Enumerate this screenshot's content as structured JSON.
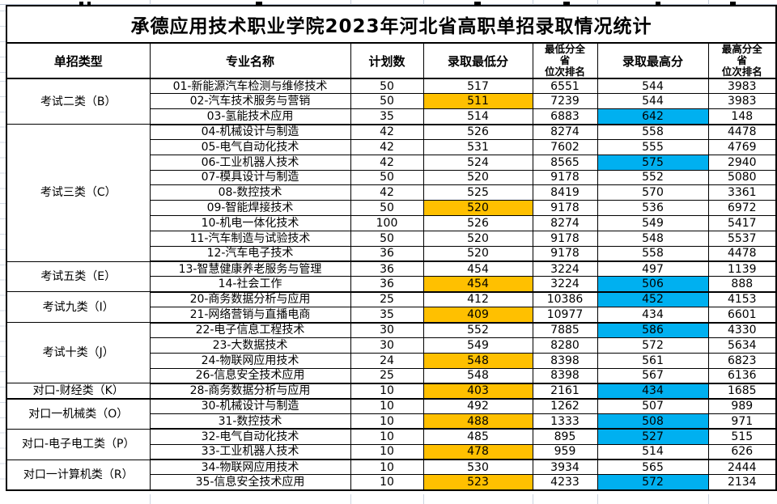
{
  "title": "承德应用技术职业学院2023年河北省高职单招录取情况统计",
  "colors": {
    "min_highlight": "#FFC000",
    "max_highlight": "#00B0F0"
  },
  "table": {
    "columns": [
      "单招类型",
      "专业名称",
      "计划数",
      "录取最低分",
      "最低分全\n省\n位次排名",
      "录取最高分",
      "最高分全\n省\n位次排名"
    ],
    "groups": [
      {
        "type": "考试二类（B）",
        "rows": [
          {
            "major": "01-新能源汽车检测与维修技术",
            "plan": "50",
            "min": "517",
            "min_rank": "6551",
            "max": "544",
            "max_rank": "3983",
            "min_hl": false,
            "max_hl": false
          },
          {
            "major": "02-汽车技术服务与营销",
            "plan": "50",
            "min": "511",
            "min_rank": "7239",
            "max": "544",
            "max_rank": "3983",
            "min_hl": true,
            "max_hl": false
          },
          {
            "major": "03-氢能技术应用",
            "plan": "35",
            "min": "514",
            "min_rank": "6883",
            "max": "642",
            "max_rank": "148",
            "min_hl": false,
            "max_hl": true
          }
        ]
      },
      {
        "type": "考试三类（C）",
        "rows": [
          {
            "major": "04-机械设计与制造",
            "plan": "42",
            "min": "526",
            "min_rank": "8274",
            "max": "558",
            "max_rank": "4478",
            "min_hl": false,
            "max_hl": false
          },
          {
            "major": "05-电气自动化技术",
            "plan": "42",
            "min": "531",
            "min_rank": "7602",
            "max": "555",
            "max_rank": "4769",
            "min_hl": false,
            "max_hl": false
          },
          {
            "major": "06-工业机器人技术",
            "plan": "42",
            "min": "524",
            "min_rank": "8565",
            "max": "575",
            "max_rank": "2940",
            "min_hl": false,
            "max_hl": true
          },
          {
            "major": "07-模具设计与制造",
            "plan": "50",
            "min": "520",
            "min_rank": "9178",
            "max": "552",
            "max_rank": "5080",
            "min_hl": false,
            "max_hl": false
          },
          {
            "major": "08-数控技术",
            "plan": "42",
            "min": "525",
            "min_rank": "8419",
            "max": "570",
            "max_rank": "3361",
            "min_hl": false,
            "max_hl": false
          },
          {
            "major": "09-智能焊接技术",
            "plan": "50",
            "min": "520",
            "min_rank": "9178",
            "max": "536",
            "max_rank": "6972",
            "min_hl": true,
            "max_hl": false
          },
          {
            "major": "10-机电一体化技术",
            "plan": "100",
            "min": "526",
            "min_rank": "8274",
            "max": "549",
            "max_rank": "5417",
            "min_hl": false,
            "max_hl": false
          },
          {
            "major": "11-汽车制造与试验技术",
            "plan": "50",
            "min": "520",
            "min_rank": "9178",
            "max": "548",
            "max_rank": "5537",
            "min_hl": false,
            "max_hl": false
          },
          {
            "major": "12-汽车电子技术",
            "plan": "36",
            "min": "520",
            "min_rank": "9178",
            "max": "558",
            "max_rank": "4478",
            "min_hl": false,
            "max_hl": false
          }
        ]
      },
      {
        "type": "考试五类（E）",
        "rows": [
          {
            "major": "13-智慧健康养老服务与管理",
            "plan": "36",
            "min": "454",
            "min_rank": "3224",
            "max": "497",
            "max_rank": "1139",
            "min_hl": false,
            "max_hl": false
          },
          {
            "major": "14-社会工作",
            "plan": "36",
            "min": "454",
            "min_rank": "3224",
            "max": "506",
            "max_rank": "888",
            "min_hl": true,
            "max_hl": true
          }
        ]
      },
      {
        "type": "考试九类（I）",
        "rows": [
          {
            "major": "20-商务数据分析与应用",
            "plan": "25",
            "min": "412",
            "min_rank": "10386",
            "max": "452",
            "max_rank": "4153",
            "min_hl": false,
            "max_hl": true
          },
          {
            "major": "21-网络营销与直播电商",
            "plan": "35",
            "min": "409",
            "min_rank": "10977",
            "max": "434",
            "max_rank": "6601",
            "min_hl": true,
            "max_hl": false
          }
        ]
      },
      {
        "type": "考试十类（J）",
        "rows": [
          {
            "major": "22-电子信息工程技术",
            "plan": "30",
            "min": "552",
            "min_rank": "7885",
            "max": "586",
            "max_rank": "4330",
            "min_hl": false,
            "max_hl": true
          },
          {
            "major": "23-大数据技术",
            "plan": "30",
            "min": "549",
            "min_rank": "8280",
            "max": "572",
            "max_rank": "5634",
            "min_hl": false,
            "max_hl": false
          },
          {
            "major": "24-物联网应用技术",
            "plan": "24",
            "min": "548",
            "min_rank": "8398",
            "max": "561",
            "max_rank": "6823",
            "min_hl": true,
            "max_hl": false
          },
          {
            "major": "26-信息安全技术应用",
            "plan": "25",
            "min": "548",
            "min_rank": "8398",
            "max": "567",
            "max_rank": "6136",
            "min_hl": false,
            "max_hl": false
          }
        ]
      },
      {
        "type": "对口-财经类（K）",
        "rows": [
          {
            "major": "28-商务数据分析与应用",
            "plan": "10",
            "min": "403",
            "min_rank": "2161",
            "max": "434",
            "max_rank": "1685",
            "min_hl": true,
            "max_hl": true
          }
        ]
      },
      {
        "type": "对口一机械类（O）",
        "rows": [
          {
            "major": "30-机械设计与制造",
            "plan": "10",
            "min": "492",
            "min_rank": "1262",
            "max": "507",
            "max_rank": "989",
            "min_hl": false,
            "max_hl": false
          },
          {
            "major": "31-数控技术",
            "plan": "10",
            "min": "488",
            "min_rank": "1333",
            "max": "508",
            "max_rank": "971",
            "min_hl": true,
            "max_hl": true
          }
        ]
      },
      {
        "type": "对口-电子电工类（P）",
        "rows": [
          {
            "major": "32-电气自动化技术",
            "plan": "10",
            "min": "485",
            "min_rank": "895",
            "max": "527",
            "max_rank": "515",
            "min_hl": false,
            "max_hl": true
          },
          {
            "major": "33-工业机器人技术",
            "plan": "10",
            "min": "478",
            "min_rank": "959",
            "max": "514",
            "max_rank": "626",
            "min_hl": true,
            "max_hl": false
          }
        ]
      },
      {
        "type": "对口一计算机类（R）",
        "rows": [
          {
            "major": "34-物联网应用技术",
            "plan": "10",
            "min": "530",
            "min_rank": "3934",
            "max": "565",
            "max_rank": "2444",
            "min_hl": false,
            "max_hl": false
          },
          {
            "major": "35-信息安全技术应用",
            "plan": "10",
            "min": "523",
            "min_rank": "4233",
            "max": "572",
            "max_rank": "2134",
            "min_hl": true,
            "max_hl": true
          }
        ]
      }
    ]
  }
}
